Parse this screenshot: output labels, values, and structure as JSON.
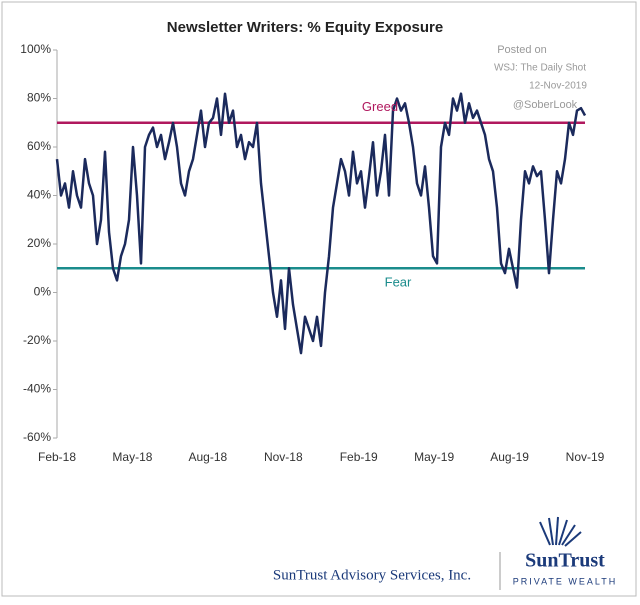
{
  "chart_data": {
    "type": "line",
    "title": "Newsletter Writers: % Equity Exposure",
    "annotations": [
      "Posted on",
      "WSJ: The Daily Shot",
      "12-Nov-2019",
      "@SoberLook"
    ],
    "footer": {
      "company": "SunTrust Advisory Services, Inc.",
      "brand": "SunTrust",
      "brand_sub": "PRIVATE WEALTH"
    },
    "xlim": [
      "2018-02",
      "2019-11"
    ],
    "xticks": [
      {
        "value": "2018-02",
        "label": "Feb-18"
      },
      {
        "value": "2018-05",
        "label": "May-18"
      },
      {
        "value": "2018-08",
        "label": "Aug-18"
      },
      {
        "value": "2018-11",
        "label": "Nov-18"
      },
      {
        "value": "2019-02",
        "label": "Feb-19"
      },
      {
        "value": "2019-05",
        "label": "May-19"
      },
      {
        "value": "2019-08",
        "label": "Aug-19"
      },
      {
        "value": "2019-11",
        "label": "Nov-19"
      }
    ],
    "ylim": [
      -60,
      100
    ],
    "yticks": [
      {
        "value": -60,
        "label": "-60%"
      },
      {
        "value": -40,
        "label": "-40%"
      },
      {
        "value": -20,
        "label": "-20%"
      },
      {
        "value": 0,
        "label": "0%"
      },
      {
        "value": 20,
        "label": "20%"
      },
      {
        "value": 40,
        "label": "40%"
      },
      {
        "value": 60,
        "label": "60%"
      },
      {
        "value": 80,
        "label": "80%"
      },
      {
        "value": 100,
        "label": "100%"
      }
    ],
    "reference_lines": [
      {
        "name": "Greed",
        "value": 70,
        "color": "#b0185e"
      },
      {
        "name": "Fear",
        "value": 10,
        "color": "#1a8c8c"
      }
    ],
    "series": [
      {
        "name": "Equity Exposure",
        "color": "#1b2a5c",
        "values": [
          55,
          40,
          45,
          35,
          50,
          40,
          35,
          55,
          45,
          40,
          20,
          30,
          58,
          25,
          10,
          5,
          15,
          20,
          30,
          60,
          40,
          12,
          60,
          65,
          68,
          60,
          65,
          55,
          62,
          70,
          60,
          45,
          40,
          50,
          55,
          65,
          75,
          60,
          70,
          72,
          80,
          65,
          82,
          70,
          75,
          60,
          65,
          55,
          62,
          60,
          70,
          45,
          30,
          15,
          0,
          -10,
          5,
          -15,
          10,
          -5,
          -15,
          -25,
          -10,
          -15,
          -20,
          -10,
          -22,
          0,
          15,
          35,
          45,
          55,
          50,
          40,
          58,
          45,
          50,
          35,
          48,
          62,
          40,
          50,
          65,
          40,
          75,
          80,
          75,
          78,
          70,
          60,
          45,
          40,
          52,
          35,
          15,
          12,
          60,
          70,
          65,
          80,
          75,
          82,
          70,
          78,
          72,
          75,
          70,
          65,
          55,
          50,
          35,
          12,
          8,
          18,
          10,
          2,
          30,
          50,
          45,
          52,
          48,
          50,
          30,
          8,
          30,
          50,
          45,
          55,
          70,
          65,
          75,
          76,
          73
        ]
      }
    ]
  }
}
